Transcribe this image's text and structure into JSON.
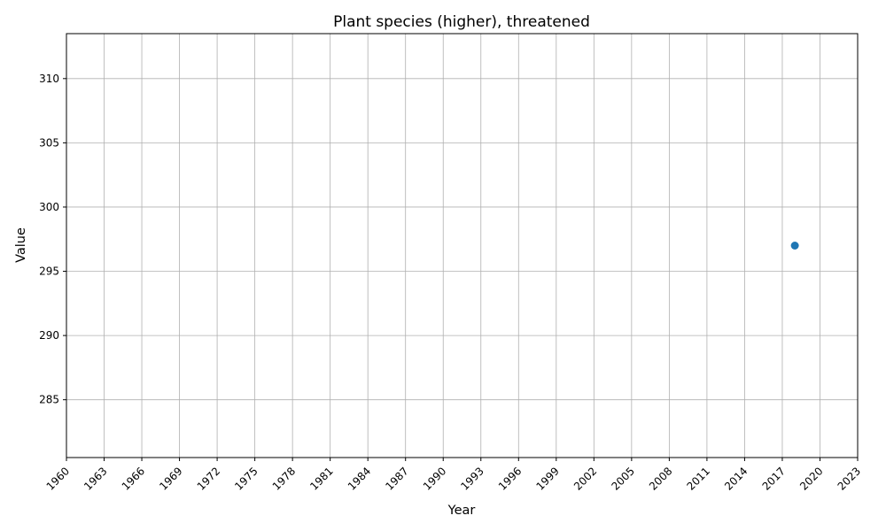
{
  "chart_data": {
    "type": "scatter",
    "title": "Plant species (higher), threatened",
    "xlabel": "Year",
    "ylabel": "Value",
    "xlim": [
      1960,
      2023
    ],
    "ylim": [
      280.5,
      313.5
    ],
    "x_ticks": [
      1960,
      1963,
      1966,
      1969,
      1972,
      1975,
      1978,
      1981,
      1984,
      1987,
      1990,
      1993,
      1996,
      1999,
      2002,
      2005,
      2008,
      2011,
      2014,
      2017,
      2020,
      2023
    ],
    "y_ticks": [
      285,
      290,
      295,
      300,
      305,
      310
    ],
    "x_tick_rotation": 45,
    "grid": true,
    "legend": "none",
    "series": [
      {
        "x": [
          2018
        ],
        "y": [
          297
        ],
        "color": "#1f77b4"
      }
    ]
  }
}
